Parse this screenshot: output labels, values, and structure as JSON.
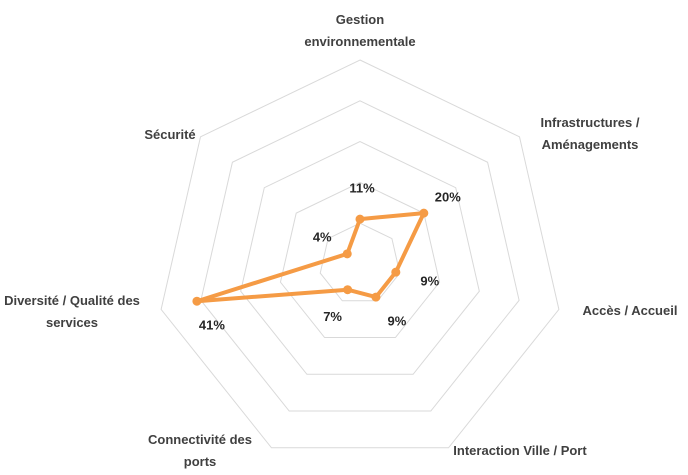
{
  "chart_data": {
    "type": "radar",
    "categories": [
      "Gestion environnementale",
      "Infrastructures / Aménagements",
      "Accès / Accueil",
      "Interaction Ville / Port",
      "Connectivité des ports",
      "Diversité / Qualité des services",
      "Sécurité"
    ],
    "values": [
      11,
      20,
      9,
      9,
      7,
      41,
      4
    ],
    "value_labels": [
      "11%",
      "20%",
      "9%",
      "9%",
      "7%",
      "41%",
      "4%"
    ],
    "color": "#f59b45",
    "ylim": [
      0,
      50
    ],
    "yticks": [
      0,
      10,
      20,
      30,
      40,
      50
    ],
    "grid": true
  }
}
